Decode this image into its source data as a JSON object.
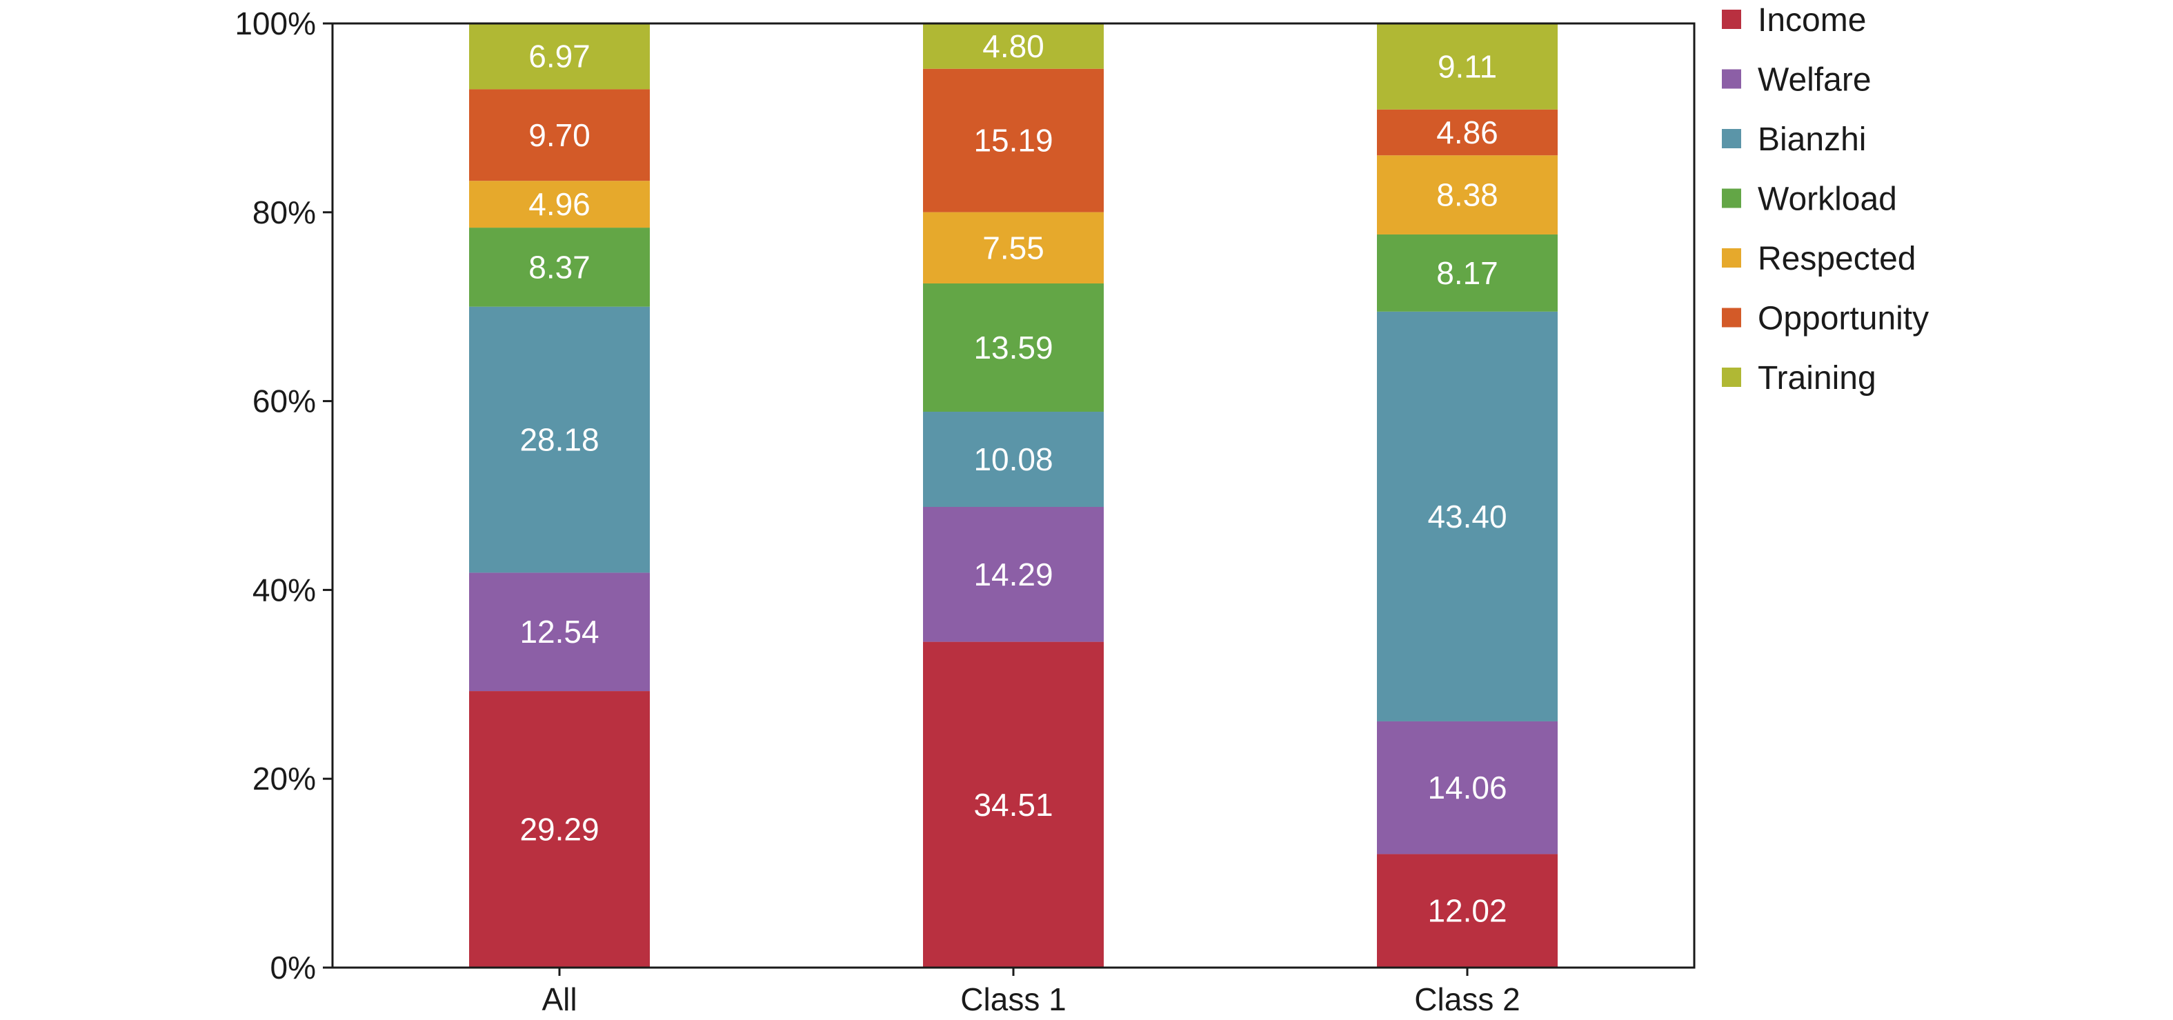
{
  "chart_data": {
    "type": "bar",
    "stacked": true,
    "percent_stacked": true,
    "categories": [
      "All",
      "Class 1",
      "Class 2"
    ],
    "series": [
      {
        "name": "Income",
        "color": "#b93040",
        "values": [
          29.29,
          34.51,
          12.02
        ]
      },
      {
        "name": "Welfare",
        "color": "#8c5fa6",
        "values": [
          12.54,
          14.29,
          14.06
        ]
      },
      {
        "name": "Bianzhi",
        "color": "#5b95a8",
        "values": [
          28.18,
          10.08,
          43.4
        ]
      },
      {
        "name": "Workload",
        "color": "#63a646",
        "values": [
          8.37,
          13.59,
          8.17
        ]
      },
      {
        "name": "Respected",
        "color": "#e6a92c",
        "values": [
          4.96,
          7.55,
          8.38
        ]
      },
      {
        "name": "Opportunity",
        "color": "#d35a28",
        "values": [
          9.7,
          15.19,
          4.86
        ]
      },
      {
        "name": "Training",
        "color": "#b0b834",
        "values": [
          6.97,
          4.8,
          9.11
        ]
      }
    ],
    "data_labels": [
      [
        "29.29",
        "34.51",
        "12.02"
      ],
      [
        "12.54",
        "14.29",
        "14.06"
      ],
      [
        "28.18",
        "10.08",
        "43.40"
      ],
      [
        "8.37",
        "13.59",
        "8.17"
      ],
      [
        "4.96",
        "7.55",
        "8.38"
      ],
      [
        "9.70",
        "15.19",
        "4.86"
      ],
      [
        "6.97",
        "4.80",
        "9.11"
      ]
    ],
    "y_ticks": [
      "0%",
      "20%",
      "40%",
      "60%",
      "80%",
      "100%"
    ],
    "y_tick_values": [
      0,
      20,
      40,
      60,
      80,
      100
    ],
    "ylim": [
      0,
      100
    ],
    "title": "",
    "xlabel": "",
    "ylabel": "",
    "grid": false,
    "legend": "right"
  }
}
